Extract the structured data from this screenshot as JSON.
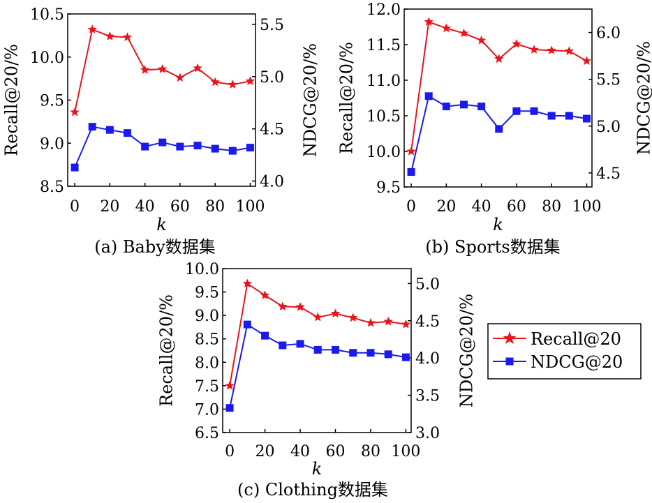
{
  "colors": {
    "recall": "#e8141b",
    "ndcg": "#1a1aee",
    "axis": "#000000"
  },
  "legend": {
    "entries": [
      {
        "label": "Recall@20",
        "color": "#e8141b",
        "marker": "star"
      },
      {
        "label": "NDCG@20",
        "color": "#1a1aee",
        "marker": "square"
      }
    ]
  },
  "chart_data": [
    {
      "type": "line",
      "caption": "(a) Baby数据集",
      "xlabel": "k",
      "ylabel_left": "Recall@20/%",
      "ylabel_right": "NDCG@20/%",
      "x": [
        0,
        10,
        20,
        30,
        40,
        50,
        60,
        70,
        80,
        90,
        100
      ],
      "xticks": [
        "0",
        "20",
        "40",
        "60",
        "80",
        "100"
      ],
      "xlim": [
        -4,
        103
      ],
      "left_axis": {
        "ylim": [
          8.5,
          10.5
        ],
        "ticks": [
          "8.5",
          "9.0",
          "9.5",
          "10.0",
          "10.5"
        ]
      },
      "right_axis": {
        "ylim": [
          3.95,
          5.6
        ],
        "ticks": [
          "4.0",
          "4.5",
          "5.0",
          "5.5"
        ]
      },
      "series": [
        {
          "name": "Recall@20",
          "axis": "left",
          "values": [
            9.36,
            10.32,
            10.24,
            10.23,
            9.85,
            9.86,
            9.76,
            9.87,
            9.71,
            9.68,
            9.72
          ]
        },
        {
          "name": "NDCG@20",
          "axis": "right",
          "values": [
            4.13,
            4.52,
            4.49,
            4.46,
            4.33,
            4.37,
            4.33,
            4.34,
            4.31,
            4.29,
            4.32
          ]
        }
      ]
    },
    {
      "type": "line",
      "caption": "(b) Sports数据集",
      "xlabel": "k",
      "ylabel_left": "Recall@20/%",
      "ylabel_right": "NDCG@20/%",
      "x": [
        0,
        10,
        20,
        30,
        40,
        50,
        60,
        70,
        80,
        90,
        100
      ],
      "xticks": [
        "0",
        "20",
        "40",
        "60",
        "80",
        "100"
      ],
      "xlim": [
        -4,
        103
      ],
      "left_axis": {
        "ylim": [
          9.5,
          12.0
        ],
        "ticks": [
          "9.5",
          "10.0",
          "10.5",
          "11.0",
          "11.5",
          "12.0"
        ]
      },
      "right_axis": {
        "ylim": [
          4.35,
          6.25
        ],
        "ticks": [
          "4.5",
          "5.0",
          "5.5",
          "6.0"
        ]
      },
      "series": [
        {
          "name": "Recall@20",
          "axis": "left",
          "values": [
            10.0,
            11.82,
            11.73,
            11.66,
            11.56,
            11.3,
            11.51,
            11.43,
            11.42,
            11.41,
            11.27
          ]
        },
        {
          "name": "NDCG@20",
          "axis": "right",
          "values": [
            4.51,
            5.32,
            5.21,
            5.23,
            5.21,
            4.97,
            5.16,
            5.16,
            5.11,
            5.11,
            5.08
          ]
        }
      ]
    },
    {
      "type": "line",
      "caption": "(c) Clothing数据集",
      "xlabel": "k",
      "ylabel_left": "Recall@20/%",
      "ylabel_right": "NDCG@20/%",
      "x": [
        0,
        10,
        20,
        30,
        40,
        50,
        60,
        70,
        80,
        90,
        100
      ],
      "xticks": [
        "0",
        "20",
        "40",
        "60",
        "80",
        "100"
      ],
      "xlim": [
        -4,
        103
      ],
      "left_axis": {
        "ylim": [
          6.5,
          10.0
        ],
        "ticks": [
          "6.5",
          "7.0",
          "7.5",
          "8.0",
          "8.5",
          "9.0",
          "9.5",
          "10.0"
        ]
      },
      "right_axis": {
        "ylim": [
          3.0,
          5.2
        ],
        "ticks": [
          "3.0",
          "3.5",
          "4.0",
          "4.5",
          "5.0"
        ]
      },
      "series": [
        {
          "name": "Recall@20",
          "axis": "left",
          "values": [
            7.5,
            9.68,
            9.43,
            9.19,
            9.18,
            8.96,
            9.04,
            8.95,
            8.84,
            8.87,
            8.81
          ]
        },
        {
          "name": "NDCG@20",
          "axis": "right",
          "values": [
            3.33,
            4.45,
            4.3,
            4.17,
            4.19,
            4.11,
            4.11,
            4.07,
            4.07,
            4.05,
            4.01
          ]
        }
      ]
    }
  ]
}
